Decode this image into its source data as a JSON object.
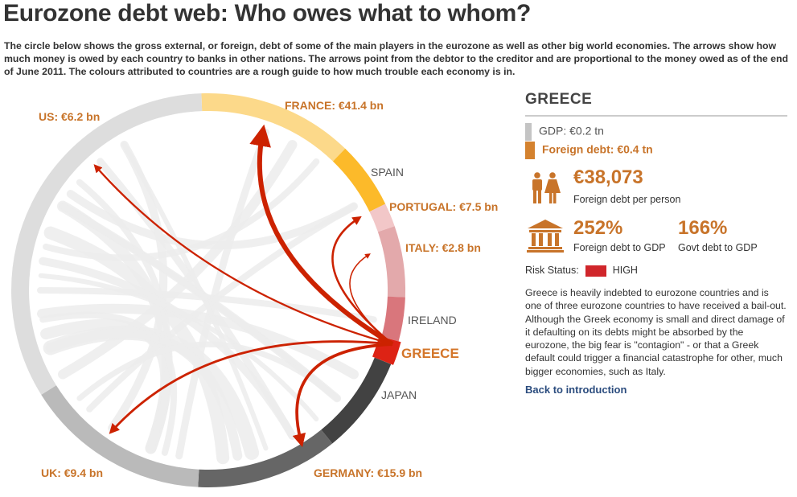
{
  "header": {
    "title": "Eurozone debt web: Who owes what to whom?",
    "intro": "The circle below shows the gross external, or foreign, debt of some of the main players in the eurozone as well as other big world economies. The arrows show how much money is owed by each country to banks in other nations. The arrows point from the debtor to the creditor and are proportional to the money owed as of the end of June 2011. The colours attributed to countries are a rough guide to how much trouble each economy is in."
  },
  "chart_data": {
    "type": "chord",
    "selected": "GREECE",
    "nodes": [
      {
        "name": "FRANCE",
        "label": "FRANCE: €41.4 bn",
        "value_bn": 41.4,
        "color": "#fcd98a"
      },
      {
        "name": "SPAIN",
        "label": "SPAIN",
        "color": "#fcba2a"
      },
      {
        "name": "PORTUGAL",
        "label": "PORTUGAL: €7.5 bn",
        "value_bn": 7.5,
        "color": "#f2c7c8"
      },
      {
        "name": "ITALY",
        "label": "ITALY: €2.8 bn",
        "value_bn": 2.8,
        "color": "#e3a9ab"
      },
      {
        "name": "IRELAND",
        "label": "IRELAND",
        "color": "#d9767c"
      },
      {
        "name": "GREECE",
        "label": "GREECE",
        "color": "#dd2315"
      },
      {
        "name": "JAPAN",
        "label": "JAPAN",
        "color": "#424242"
      },
      {
        "name": "GERMANY",
        "label": "GERMANY: €15.9 bn",
        "value_bn": 15.9,
        "color": "#666666"
      },
      {
        "name": "UK",
        "label": "UK: €9.4 bn",
        "value_bn": 9.4,
        "color": "#bababa"
      },
      {
        "name": "US",
        "label": "US: €6.2 bn",
        "value_bn": 6.2,
        "color": "#dddddd"
      }
    ],
    "flows_from_selected": [
      {
        "to": "FRANCE",
        "value_bn": 41.4
      },
      {
        "to": "GERMANY",
        "value_bn": 15.9
      },
      {
        "to": "UK",
        "value_bn": 9.4
      },
      {
        "to": "PORTUGAL",
        "value_bn": 7.5
      },
      {
        "to": "US",
        "value_bn": 6.2
      },
      {
        "to": "ITALY",
        "value_bn": 2.8
      }
    ],
    "arrow_color": "#cc2200",
    "background_ribbon_color": "#ececec"
  },
  "panel": {
    "country": "GREECE",
    "gdp_label": "GDP: €0.2 tn",
    "gdp_color": "#c4c4c4",
    "foreign_debt_label": "Foreign debt: €0.4 tn",
    "foreign_debt_color": "#d4822f",
    "per_person_value": "€38,073",
    "per_person_caption": "Foreign debt per person",
    "debt_gdp_value": "252%",
    "debt_gdp_caption": "Foreign debt to GDP",
    "govt_gdp_value": "166%",
    "govt_gdp_caption": "Govt debt to GDP",
    "risk_label": "Risk Status:",
    "risk_value": "HIGH",
    "risk_color": "#d0262b",
    "description": "Greece is heavily indebted to eurozone countries and is one of three eurozone countries to have received a bail-out. Although the Greek economy is small and direct damage of it defaulting on its debts might be absorbed by the eurozone, the big fear is \"contagion\" - or that a Greek default could trigger a financial catastrophe for other, much bigger economies, such as Italy.",
    "back_link": "Back to introduction"
  }
}
